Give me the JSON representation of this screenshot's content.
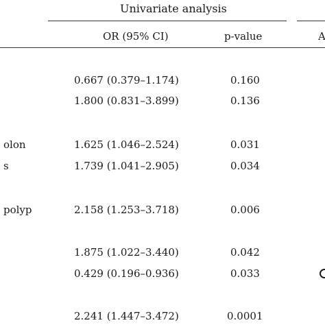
{
  "table": {
    "group_header": "Univariate analysis",
    "group_header_right": "A",
    "columns": {
      "or": "OR (95% CI)",
      "p": "p-value"
    },
    "rows": [
      {
        "label": "",
        "or": "0.667 (0.379–1.174)",
        "p": "0.160"
      },
      {
        "label": "",
        "or": "1.800 (0.831–3.899)",
        "p": "0.136"
      },
      {
        "label": "olon",
        "or": "1.625 (1.046–2.524)",
        "p": "0.031"
      },
      {
        "label": "s",
        "or": "1.739 (1.041–2.905)",
        "p": "0.034"
      },
      {
        "label": "polyp",
        "or": "2.158 (1.253–3.718)",
        "p": "0.006"
      },
      {
        "label": "",
        "or": "1.875 (1.022–3.440)",
        "p": "0.042"
      },
      {
        "label": "",
        "or": "0.429 (0.196–0.936)",
        "p": "0.033"
      },
      {
        "label": "",
        "or": "2.241 (1.447–3.472)",
        "p": "0.0001"
      }
    ]
  }
}
